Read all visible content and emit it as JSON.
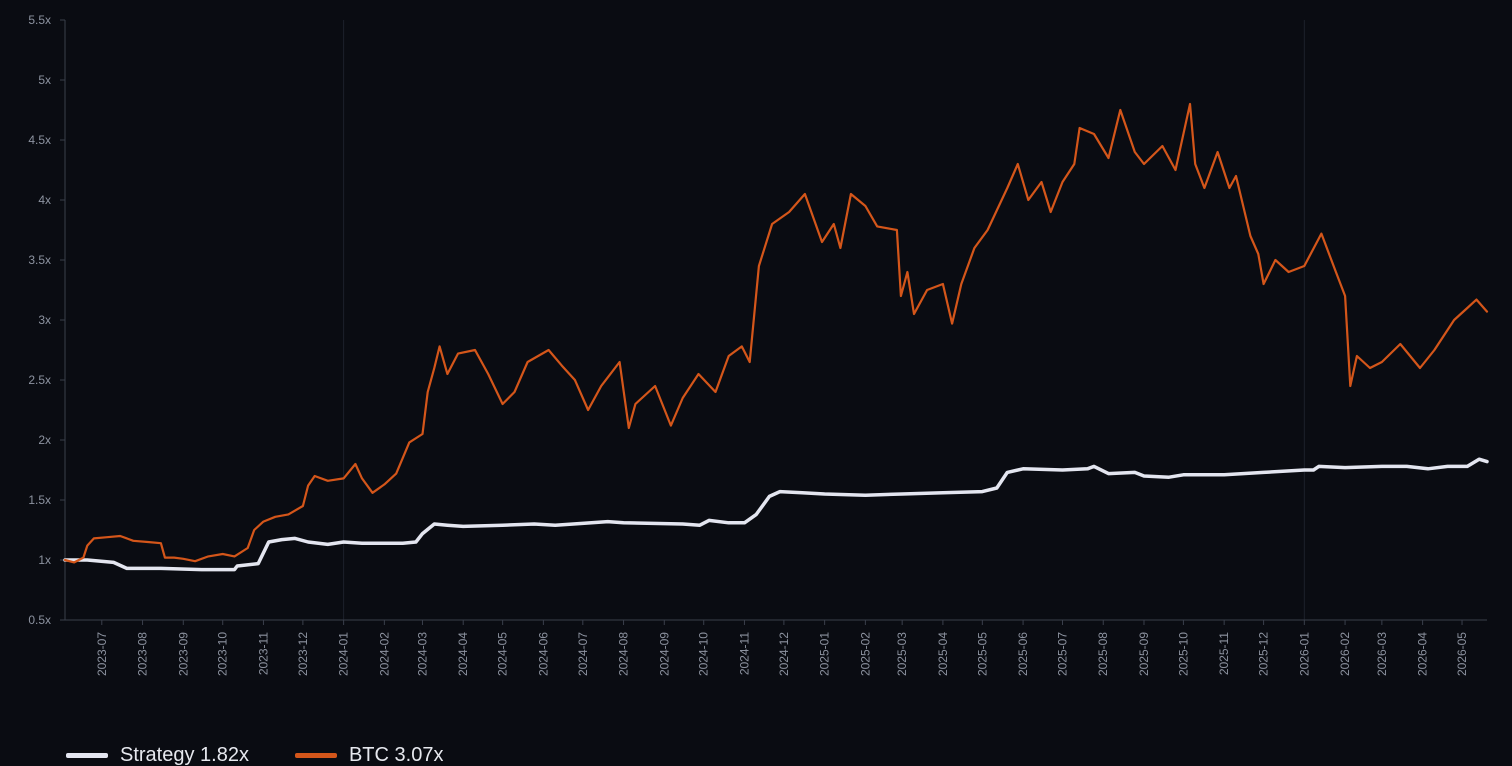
{
  "chart_data": {
    "type": "line",
    "x_unit": "month",
    "x_range": [
      "2023-06-03",
      "2026-05-20"
    ],
    "y_range": [
      0.5,
      5.5
    ],
    "y_ticks": [
      0.5,
      1,
      1.5,
      2,
      2.5,
      3,
      3.5,
      4,
      4.5,
      5,
      5.5
    ],
    "y_tick_labels": [
      "0.5x",
      "1x",
      "1.5x",
      "2x",
      "2.5x",
      "3x",
      "3.5x",
      "4x",
      "4.5x",
      "5x",
      "5.5x"
    ],
    "x_tick_labels": [
      "2023-07",
      "2023-08",
      "2023-09",
      "2023-10",
      "2023-11",
      "2023-12",
      "2024-01",
      "2024-02",
      "2024-03",
      "2024-04",
      "2024-05",
      "2024-06",
      "2024-07",
      "2024-08",
      "2024-09",
      "2024-10",
      "2024-11",
      "2024-12",
      "2025-01",
      "2025-02",
      "2025-03",
      "2025-04",
      "2025-05",
      "2025-06",
      "2025-07",
      "2025-08",
      "2025-09",
      "2025-10",
      "2025-11",
      "2025-12",
      "2026-01",
      "2026-02",
      "2026-03",
      "2026-04",
      "2026-05"
    ],
    "highlight_gridlines": [
      "2024-01",
      "2026-01"
    ],
    "grid": true,
    "legend": {
      "placement": "bottom-left"
    },
    "series": [
      {
        "name": "Strategy 1.82x",
        "color": "#e4e6f0",
        "points": [
          [
            "2023-06-03",
            1.0
          ],
          [
            "2023-06-20",
            1.0
          ],
          [
            "2023-07-10",
            0.98
          ],
          [
            "2023-07-20",
            0.93
          ],
          [
            "2023-08-15",
            0.93
          ],
          [
            "2023-09-15",
            0.92
          ],
          [
            "2023-10-10",
            0.92
          ],
          [
            "2023-10-12",
            0.95
          ],
          [
            "2023-10-28",
            0.97
          ],
          [
            "2023-11-05",
            1.15
          ],
          [
            "2023-11-15",
            1.17
          ],
          [
            "2023-11-25",
            1.18
          ],
          [
            "2023-12-05",
            1.15
          ],
          [
            "2023-12-20",
            1.13
          ],
          [
            "2024-01-01",
            1.15
          ],
          [
            "2024-01-15",
            1.14
          ],
          [
            "2024-02-15",
            1.14
          ],
          [
            "2024-02-25",
            1.15
          ],
          [
            "2024-03-01",
            1.22
          ],
          [
            "2024-03-10",
            1.3
          ],
          [
            "2024-03-20",
            1.29
          ],
          [
            "2024-04-01",
            1.28
          ],
          [
            "2024-05-01",
            1.29
          ],
          [
            "2024-05-25",
            1.3
          ],
          [
            "2024-06-10",
            1.29
          ],
          [
            "2024-07-20",
            1.32
          ],
          [
            "2024-08-01",
            1.31
          ],
          [
            "2024-09-15",
            1.3
          ],
          [
            "2024-09-28",
            1.29
          ],
          [
            "2024-10-05",
            1.33
          ],
          [
            "2024-10-20",
            1.31
          ],
          [
            "2024-11-01",
            1.31
          ],
          [
            "2024-11-10",
            1.38
          ],
          [
            "2024-11-20",
            1.53
          ],
          [
            "2024-11-28",
            1.57
          ],
          [
            "2024-12-15",
            1.56
          ],
          [
            "2025-01-01",
            1.55
          ],
          [
            "2025-02-01",
            1.54
          ],
          [
            "2025-03-01",
            1.55
          ],
          [
            "2025-04-01",
            1.56
          ],
          [
            "2025-05-01",
            1.57
          ],
          [
            "2025-05-12",
            1.6
          ],
          [
            "2025-05-20",
            1.73
          ],
          [
            "2025-06-01",
            1.76
          ],
          [
            "2025-07-01",
            1.75
          ],
          [
            "2025-07-20",
            1.76
          ],
          [
            "2025-07-25",
            1.78
          ],
          [
            "2025-08-05",
            1.72
          ],
          [
            "2025-08-25",
            1.73
          ],
          [
            "2025-09-01",
            1.7
          ],
          [
            "2025-09-20",
            1.69
          ],
          [
            "2025-10-01",
            1.71
          ],
          [
            "2025-10-15",
            1.71
          ],
          [
            "2025-11-01",
            1.71
          ],
          [
            "2025-12-01",
            1.73
          ],
          [
            "2026-01-01",
            1.75
          ],
          [
            "2026-01-08",
            1.75
          ],
          [
            "2026-01-12",
            1.78
          ],
          [
            "2026-02-01",
            1.77
          ],
          [
            "2026-03-01",
            1.78
          ],
          [
            "2026-03-20",
            1.78
          ],
          [
            "2026-04-05",
            1.76
          ],
          [
            "2026-04-20",
            1.78
          ],
          [
            "2026-05-05",
            1.78
          ],
          [
            "2026-05-14",
            1.84
          ],
          [
            "2026-05-20",
            1.82
          ]
        ]
      },
      {
        "name": "BTC 3.07x",
        "color": "#d4561a",
        "points": [
          [
            "2023-06-03",
            1.0
          ],
          [
            "2023-06-10",
            0.98
          ],
          [
            "2023-06-17",
            1.02
          ],
          [
            "2023-06-20",
            1.12
          ],
          [
            "2023-06-25",
            1.18
          ],
          [
            "2023-07-05",
            1.19
          ],
          [
            "2023-07-15",
            1.2
          ],
          [
            "2023-07-25",
            1.16
          ],
          [
            "2023-08-05",
            1.15
          ],
          [
            "2023-08-15",
            1.14
          ],
          [
            "2023-08-18",
            1.02
          ],
          [
            "2023-08-25",
            1.02
          ],
          [
            "2023-09-01",
            1.01
          ],
          [
            "2023-09-10",
            0.99
          ],
          [
            "2023-09-20",
            1.03
          ],
          [
            "2023-10-01",
            1.05
          ],
          [
            "2023-10-10",
            1.03
          ],
          [
            "2023-10-20",
            1.1
          ],
          [
            "2023-10-25",
            1.25
          ],
          [
            "2023-11-01",
            1.32
          ],
          [
            "2023-11-10",
            1.36
          ],
          [
            "2023-11-20",
            1.38
          ],
          [
            "2023-12-01",
            1.45
          ],
          [
            "2023-12-05",
            1.62
          ],
          [
            "2023-12-10",
            1.7
          ],
          [
            "2023-12-20",
            1.66
          ],
          [
            "2024-01-01",
            1.68
          ],
          [
            "2024-01-10",
            1.8
          ],
          [
            "2024-01-15",
            1.68
          ],
          [
            "2024-01-23",
            1.56
          ],
          [
            "2024-02-01",
            1.63
          ],
          [
            "2024-02-10",
            1.72
          ],
          [
            "2024-02-20",
            1.98
          ],
          [
            "2024-03-01",
            2.05
          ],
          [
            "2024-03-05",
            2.4
          ],
          [
            "2024-03-10",
            2.6
          ],
          [
            "2024-03-14",
            2.78
          ],
          [
            "2024-03-20",
            2.55
          ],
          [
            "2024-03-28",
            2.72
          ],
          [
            "2024-04-10",
            2.75
          ],
          [
            "2024-04-20",
            2.55
          ],
          [
            "2024-05-01",
            2.3
          ],
          [
            "2024-05-10",
            2.4
          ],
          [
            "2024-05-20",
            2.65
          ],
          [
            "2024-06-05",
            2.75
          ],
          [
            "2024-06-15",
            2.62
          ],
          [
            "2024-06-25",
            2.5
          ],
          [
            "2024-07-05",
            2.25
          ],
          [
            "2024-07-15",
            2.45
          ],
          [
            "2024-07-29",
            2.65
          ],
          [
            "2024-08-05",
            2.1
          ],
          [
            "2024-08-10",
            2.3
          ],
          [
            "2024-08-25",
            2.45
          ],
          [
            "2024-09-06",
            2.12
          ],
          [
            "2024-09-15",
            2.35
          ],
          [
            "2024-09-27",
            2.55
          ],
          [
            "2024-10-10",
            2.4
          ],
          [
            "2024-10-20",
            2.7
          ],
          [
            "2024-10-30",
            2.78
          ],
          [
            "2024-11-05",
            2.65
          ],
          [
            "2024-11-12",
            3.45
          ],
          [
            "2024-11-22",
            3.8
          ],
          [
            "2024-12-05",
            3.9
          ],
          [
            "2024-12-17",
            4.05
          ],
          [
            "2024-12-30",
            3.65
          ],
          [
            "2025-01-08",
            3.8
          ],
          [
            "2025-01-13",
            3.6
          ],
          [
            "2025-01-21",
            4.05
          ],
          [
            "2025-02-01",
            3.95
          ],
          [
            "2025-02-10",
            3.78
          ],
          [
            "2025-02-25",
            3.75
          ],
          [
            "2025-02-28",
            3.2
          ],
          [
            "2025-03-05",
            3.4
          ],
          [
            "2025-03-10",
            3.05
          ],
          [
            "2025-03-20",
            3.25
          ],
          [
            "2025-04-01",
            3.3
          ],
          [
            "2025-04-08",
            2.97
          ],
          [
            "2025-04-15",
            3.3
          ],
          [
            "2025-04-25",
            3.6
          ],
          [
            "2025-05-05",
            3.75
          ],
          [
            "2025-05-20",
            4.1
          ],
          [
            "2025-05-28",
            4.3
          ],
          [
            "2025-06-05",
            4.0
          ],
          [
            "2025-06-15",
            4.15
          ],
          [
            "2025-06-22",
            3.9
          ],
          [
            "2025-07-01",
            4.15
          ],
          [
            "2025-07-10",
            4.3
          ],
          [
            "2025-07-14",
            4.6
          ],
          [
            "2025-07-25",
            4.55
          ],
          [
            "2025-08-05",
            4.35
          ],
          [
            "2025-08-14",
            4.75
          ],
          [
            "2025-08-25",
            4.4
          ],
          [
            "2025-09-01",
            4.3
          ],
          [
            "2025-09-15",
            4.45
          ],
          [
            "2025-09-25",
            4.25
          ],
          [
            "2025-10-06",
            4.8
          ],
          [
            "2025-10-10",
            4.3
          ],
          [
            "2025-10-17",
            4.1
          ],
          [
            "2025-10-27",
            4.4
          ],
          [
            "2025-11-05",
            4.1
          ],
          [
            "2025-11-10",
            4.2
          ],
          [
            "2025-11-21",
            3.7
          ],
          [
            "2025-11-27",
            3.55
          ],
          [
            "2025-12-01",
            3.3
          ],
          [
            "2025-12-10",
            3.5
          ],
          [
            "2025-12-20",
            3.4
          ],
          [
            "2026-01-01",
            3.45
          ],
          [
            "2026-01-14",
            3.72
          ],
          [
            "2026-01-25",
            3.4
          ],
          [
            "2026-02-01",
            3.2
          ],
          [
            "2026-02-05",
            2.45
          ],
          [
            "2026-02-10",
            2.7
          ],
          [
            "2026-02-20",
            2.6
          ],
          [
            "2026-03-01",
            2.65
          ],
          [
            "2026-03-15",
            2.8
          ],
          [
            "2026-03-30",
            2.6
          ],
          [
            "2026-04-10",
            2.75
          ],
          [
            "2026-04-25",
            3.0
          ],
          [
            "2026-05-05",
            3.1
          ],
          [
            "2026-05-12",
            3.17
          ],
          [
            "2026-05-20",
            3.07
          ]
        ]
      }
    ]
  }
}
